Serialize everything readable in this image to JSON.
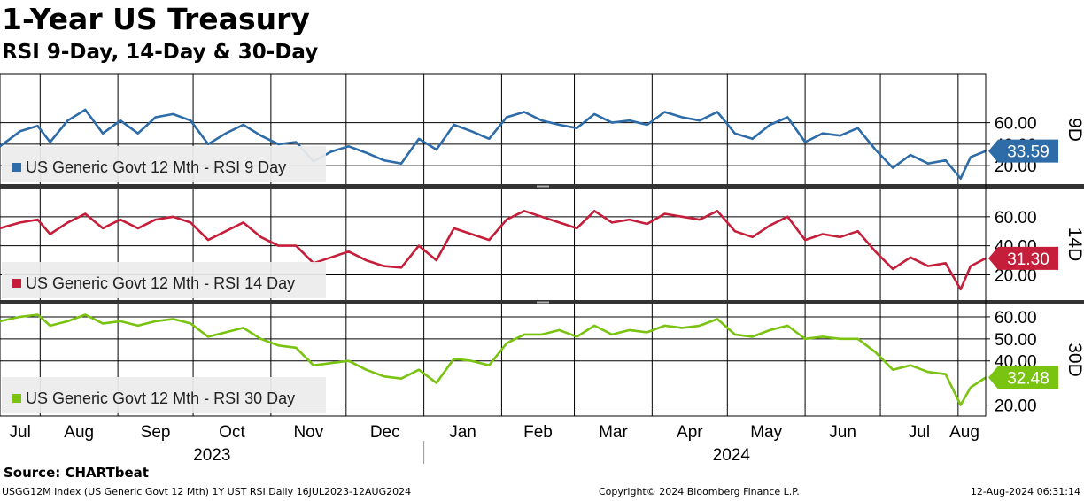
{
  "header": {
    "title": "1-Year US Treasury",
    "subtitle": "RSI 9-Day, 14-Day & 30-Day"
  },
  "footer": {
    "source": "Source: CHARTbeat",
    "index_desc": "USGG12M Index (US Generic Govt 12 Mth) 1Y UST RSI  Daily 16JUL2023-12AUG2024",
    "copyright": "Copyright© 2024 Bloomberg Finance L.P.",
    "timestamp": "12-Aug-2024 06:31:14"
  },
  "chart_data": {
    "type": "line",
    "x_start": "2023-07-16",
    "x_end": "2024-08-12",
    "months": [
      "Jul",
      "Aug",
      "Sep",
      "Oct",
      "Nov",
      "Dec",
      "Jan",
      "Feb",
      "Mar",
      "Apr",
      "May",
      "Jun",
      "Jul",
      "Aug"
    ],
    "years": [
      "2023",
      "2024"
    ],
    "panels": [
      {
        "name": "RSI 9 Day",
        "legend": "US Generic Govt 12 Mth - RSI 9 Day",
        "side_label": "9D",
        "color": "#2e6ca8",
        "last_value": "33.59",
        "ylim": [
          2,
          105
        ],
        "yticks": [
          {
            "value": 60,
            "label": "60.00"
          },
          {
            "value": 40,
            "label": "40.00"
          },
          {
            "value": 20,
            "label": "20.00"
          }
        ],
        "series": [
          {
            "date": "2023-07-16",
            "value": 38
          },
          {
            "date": "2023-07-24",
            "value": 52
          },
          {
            "date": "2023-07-31",
            "value": 57
          },
          {
            "date": "2023-08-05",
            "value": 42
          },
          {
            "date": "2023-08-12",
            "value": 62
          },
          {
            "date": "2023-08-19",
            "value": 72
          },
          {
            "date": "2023-08-26",
            "value": 50
          },
          {
            "date": "2023-09-02",
            "value": 62
          },
          {
            "date": "2023-09-09",
            "value": 50
          },
          {
            "date": "2023-09-16",
            "value": 65
          },
          {
            "date": "2023-09-23",
            "value": 68
          },
          {
            "date": "2023-09-30",
            "value": 62
          },
          {
            "date": "2023-10-07",
            "value": 40
          },
          {
            "date": "2023-10-14",
            "value": 50
          },
          {
            "date": "2023-10-21",
            "value": 58
          },
          {
            "date": "2023-10-28",
            "value": 48
          },
          {
            "date": "2023-11-04",
            "value": 40
          },
          {
            "date": "2023-11-11",
            "value": 42
          },
          {
            "date": "2023-11-18",
            "value": 24
          },
          {
            "date": "2023-11-25",
            "value": 33
          },
          {
            "date": "2023-12-02",
            "value": 38
          },
          {
            "date": "2023-12-09",
            "value": 32
          },
          {
            "date": "2023-12-16",
            "value": 25
          },
          {
            "date": "2023-12-23",
            "value": 22
          },
          {
            "date": "2023-12-30",
            "value": 45
          },
          {
            "date": "2024-01-06",
            "value": 35
          },
          {
            "date": "2024-01-13",
            "value": 58
          },
          {
            "date": "2024-01-20",
            "value": 52
          },
          {
            "date": "2024-01-27",
            "value": 45
          },
          {
            "date": "2024-02-03",
            "value": 65
          },
          {
            "date": "2024-02-10",
            "value": 70
          },
          {
            "date": "2024-02-17",
            "value": 62
          },
          {
            "date": "2024-02-24",
            "value": 58
          },
          {
            "date": "2024-03-02",
            "value": 55
          },
          {
            "date": "2024-03-09",
            "value": 68
          },
          {
            "date": "2024-03-16",
            "value": 60
          },
          {
            "date": "2024-03-23",
            "value": 62
          },
          {
            "date": "2024-03-30",
            "value": 58
          },
          {
            "date": "2024-04-06",
            "value": 70
          },
          {
            "date": "2024-04-13",
            "value": 65
          },
          {
            "date": "2024-04-20",
            "value": 62
          },
          {
            "date": "2024-04-27",
            "value": 70
          },
          {
            "date": "2024-05-04",
            "value": 50
          },
          {
            "date": "2024-05-11",
            "value": 45
          },
          {
            "date": "2024-05-18",
            "value": 58
          },
          {
            "date": "2024-05-25",
            "value": 65
          },
          {
            "date": "2024-06-01",
            "value": 42
          },
          {
            "date": "2024-06-08",
            "value": 50
          },
          {
            "date": "2024-06-15",
            "value": 48
          },
          {
            "date": "2024-06-22",
            "value": 55
          },
          {
            "date": "2024-06-29",
            "value": 35
          },
          {
            "date": "2024-07-06",
            "value": 18
          },
          {
            "date": "2024-07-13",
            "value": 30
          },
          {
            "date": "2024-07-20",
            "value": 22
          },
          {
            "date": "2024-07-27",
            "value": 25
          },
          {
            "date": "2024-08-02",
            "value": 8
          },
          {
            "date": "2024-08-06",
            "value": 28
          },
          {
            "date": "2024-08-12",
            "value": 33.59
          }
        ]
      },
      {
        "name": "RSI 14 Day",
        "legend": "US Generic Govt 12 Mth - RSI 14 Day",
        "side_label": "14D",
        "color": "#c41e3a",
        "last_value": "31.30",
        "ylim": [
          2,
          80
        ],
        "yticks": [
          {
            "value": 60,
            "label": "60.00"
          },
          {
            "value": 40,
            "label": "40.00"
          },
          {
            "value": 20,
            "label": "20.00"
          }
        ],
        "series": [
          {
            "date": "2023-07-16",
            "value": 52
          },
          {
            "date": "2023-07-24",
            "value": 56
          },
          {
            "date": "2023-07-31",
            "value": 58
          },
          {
            "date": "2023-08-05",
            "value": 48
          },
          {
            "date": "2023-08-12",
            "value": 56
          },
          {
            "date": "2023-08-19",
            "value": 62
          },
          {
            "date": "2023-08-26",
            "value": 52
          },
          {
            "date": "2023-09-02",
            "value": 58
          },
          {
            "date": "2023-09-09",
            "value": 52
          },
          {
            "date": "2023-09-16",
            "value": 58
          },
          {
            "date": "2023-09-23",
            "value": 60
          },
          {
            "date": "2023-09-30",
            "value": 56
          },
          {
            "date": "2023-10-07",
            "value": 44
          },
          {
            "date": "2023-10-14",
            "value": 50
          },
          {
            "date": "2023-10-21",
            "value": 56
          },
          {
            "date": "2023-10-28",
            "value": 46
          },
          {
            "date": "2023-11-04",
            "value": 40
          },
          {
            "date": "2023-11-11",
            "value": 40
          },
          {
            "date": "2023-11-18",
            "value": 28
          },
          {
            "date": "2023-11-25",
            "value": 32
          },
          {
            "date": "2023-12-02",
            "value": 36
          },
          {
            "date": "2023-12-09",
            "value": 30
          },
          {
            "date": "2023-12-16",
            "value": 26
          },
          {
            "date": "2023-12-23",
            "value": 25
          },
          {
            "date": "2023-12-30",
            "value": 40
          },
          {
            "date": "2024-01-06",
            "value": 30
          },
          {
            "date": "2024-01-13",
            "value": 52
          },
          {
            "date": "2024-01-20",
            "value": 48
          },
          {
            "date": "2024-01-27",
            "value": 44
          },
          {
            "date": "2024-02-03",
            "value": 58
          },
          {
            "date": "2024-02-10",
            "value": 64
          },
          {
            "date": "2024-02-17",
            "value": 60
          },
          {
            "date": "2024-02-24",
            "value": 56
          },
          {
            "date": "2024-03-02",
            "value": 52
          },
          {
            "date": "2024-03-09",
            "value": 64
          },
          {
            "date": "2024-03-16",
            "value": 56
          },
          {
            "date": "2024-03-23",
            "value": 58
          },
          {
            "date": "2024-03-30",
            "value": 55
          },
          {
            "date": "2024-04-06",
            "value": 62
          },
          {
            "date": "2024-04-13",
            "value": 60
          },
          {
            "date": "2024-04-20",
            "value": 58
          },
          {
            "date": "2024-04-27",
            "value": 64
          },
          {
            "date": "2024-05-04",
            "value": 50
          },
          {
            "date": "2024-05-11",
            "value": 46
          },
          {
            "date": "2024-05-18",
            "value": 54
          },
          {
            "date": "2024-05-25",
            "value": 60
          },
          {
            "date": "2024-06-01",
            "value": 44
          },
          {
            "date": "2024-06-08",
            "value": 48
          },
          {
            "date": "2024-06-15",
            "value": 46
          },
          {
            "date": "2024-06-22",
            "value": 50
          },
          {
            "date": "2024-06-29",
            "value": 36
          },
          {
            "date": "2024-07-06",
            "value": 24
          },
          {
            "date": "2024-07-13",
            "value": 32
          },
          {
            "date": "2024-07-20",
            "value": 26
          },
          {
            "date": "2024-07-27",
            "value": 28
          },
          {
            "date": "2024-08-02",
            "value": 10
          },
          {
            "date": "2024-08-06",
            "value": 26
          },
          {
            "date": "2024-08-12",
            "value": 31.3
          }
        ]
      },
      {
        "name": "RSI 30 Day",
        "legend": "US Generic Govt 12 Mth - RSI 30 Day",
        "side_label": "30D",
        "color": "#7ac411",
        "last_value": "32.48",
        "ylim": [
          15,
          66
        ],
        "yticks": [
          {
            "value": 60,
            "label": "60.00"
          },
          {
            "value": 50,
            "label": "50.00"
          },
          {
            "value": 40,
            "label": "40.00"
          },
          {
            "value": 20,
            "label": "20.00"
          }
        ],
        "series": [
          {
            "date": "2023-07-16",
            "value": 58
          },
          {
            "date": "2023-07-24",
            "value": 60
          },
          {
            "date": "2023-07-31",
            "value": 61
          },
          {
            "date": "2023-08-05",
            "value": 56
          },
          {
            "date": "2023-08-12",
            "value": 58
          },
          {
            "date": "2023-08-19",
            "value": 61
          },
          {
            "date": "2023-08-26",
            "value": 57
          },
          {
            "date": "2023-09-02",
            "value": 58
          },
          {
            "date": "2023-09-09",
            "value": 56
          },
          {
            "date": "2023-09-16",
            "value": 58
          },
          {
            "date": "2023-09-23",
            "value": 59
          },
          {
            "date": "2023-09-30",
            "value": 57
          },
          {
            "date": "2023-10-07",
            "value": 51
          },
          {
            "date": "2023-10-14",
            "value": 53
          },
          {
            "date": "2023-10-21",
            "value": 55
          },
          {
            "date": "2023-10-28",
            "value": 50
          },
          {
            "date": "2023-11-04",
            "value": 47
          },
          {
            "date": "2023-11-11",
            "value": 46
          },
          {
            "date": "2023-11-18",
            "value": 38
          },
          {
            "date": "2023-11-25",
            "value": 39
          },
          {
            "date": "2023-12-02",
            "value": 40
          },
          {
            "date": "2023-12-09",
            "value": 36
          },
          {
            "date": "2023-12-16",
            "value": 33
          },
          {
            "date": "2023-12-23",
            "value": 32
          },
          {
            "date": "2023-12-30",
            "value": 36
          },
          {
            "date": "2024-01-06",
            "value": 30
          },
          {
            "date": "2024-01-13",
            "value": 41
          },
          {
            "date": "2024-01-20",
            "value": 40
          },
          {
            "date": "2024-01-27",
            "value": 38
          },
          {
            "date": "2024-02-03",
            "value": 48
          },
          {
            "date": "2024-02-10",
            "value": 52
          },
          {
            "date": "2024-02-17",
            "value": 52
          },
          {
            "date": "2024-02-24",
            "value": 54
          },
          {
            "date": "2024-03-02",
            "value": 51
          },
          {
            "date": "2024-03-09",
            "value": 56
          },
          {
            "date": "2024-03-16",
            "value": 52
          },
          {
            "date": "2024-03-23",
            "value": 54
          },
          {
            "date": "2024-03-30",
            "value": 53
          },
          {
            "date": "2024-04-06",
            "value": 56
          },
          {
            "date": "2024-04-13",
            "value": 55
          },
          {
            "date": "2024-04-20",
            "value": 56
          },
          {
            "date": "2024-04-27",
            "value": 59
          },
          {
            "date": "2024-05-04",
            "value": 52
          },
          {
            "date": "2024-05-11",
            "value": 51
          },
          {
            "date": "2024-05-18",
            "value": 54
          },
          {
            "date": "2024-05-25",
            "value": 56
          },
          {
            "date": "2024-06-01",
            "value": 50
          },
          {
            "date": "2024-06-08",
            "value": 51
          },
          {
            "date": "2024-06-15",
            "value": 50
          },
          {
            "date": "2024-06-22",
            "value": 50
          },
          {
            "date": "2024-06-29",
            "value": 44
          },
          {
            "date": "2024-07-06",
            "value": 36
          },
          {
            "date": "2024-07-13",
            "value": 38
          },
          {
            "date": "2024-07-20",
            "value": 35
          },
          {
            "date": "2024-07-27",
            "value": 34
          },
          {
            "date": "2024-08-02",
            "value": 20
          },
          {
            "date": "2024-08-06",
            "value": 28
          },
          {
            "date": "2024-08-12",
            "value": 32.48
          }
        ]
      }
    ]
  }
}
